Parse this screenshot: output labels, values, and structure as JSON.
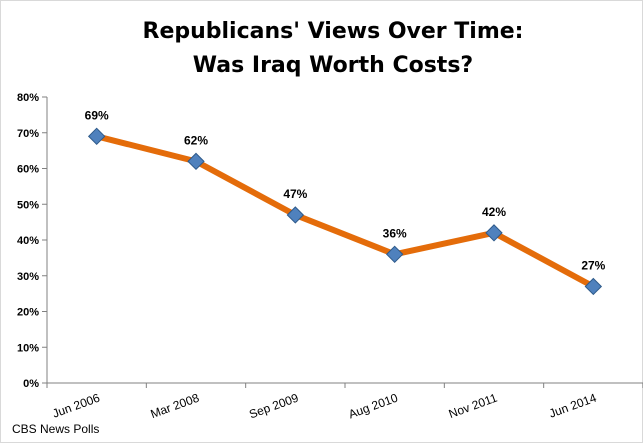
{
  "colors": {
    "line": "#E46C0A",
    "marker": "#4F81BD",
    "marker_stroke": "#2E5A8A",
    "axis": "#808080"
  },
  "chart_data": {
    "type": "line",
    "title_lines": [
      "Republicans' Views Over Time:",
      "Was Iraq Worth Costs?"
    ],
    "categories": [
      "Jun 2006",
      "Mar 2008",
      "Sep 2009",
      "Aug 2010",
      "Nov 2011",
      "Jun 2014"
    ],
    "values": [
      69,
      62,
      47,
      36,
      42,
      27
    ],
    "data_labels": [
      "69%",
      "62%",
      "47%",
      "36%",
      "42%",
      "27%"
    ],
    "y_ticks": [
      "0%",
      "10%",
      "20%",
      "30%",
      "40%",
      "50%",
      "60%",
      "70%",
      "80%"
    ],
    "ylim": [
      0,
      80
    ],
    "xlabel": "",
    "ylabel": "",
    "grid": false,
    "legend": "none"
  },
  "source": "CBS News Polls"
}
